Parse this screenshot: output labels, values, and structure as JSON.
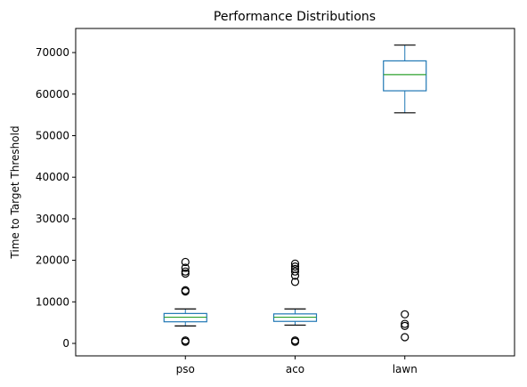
{
  "chart_data": {
    "type": "box",
    "title": "Performance Distributions",
    "xlabel": "",
    "ylabel": "Time to Target Threshold",
    "ylim": [
      -3000,
      75800
    ],
    "yticks": [
      0,
      10000,
      20000,
      30000,
      40000,
      50000,
      60000,
      70000
    ],
    "grid": false,
    "categories": [
      "pso",
      "aco",
      "lawn"
    ],
    "boxes": [
      {
        "category": "pso",
        "whisker_low": 4200,
        "q1": 5200,
        "median": 6300,
        "q3": 7200,
        "whisker_high": 8300,
        "outliers": [
          400,
          700,
          12500,
          12800,
          16800,
          17300,
          18200,
          19600
        ]
      },
      {
        "category": "aco",
        "whisker_low": 4400,
        "q1": 5300,
        "median": 6300,
        "q3": 7100,
        "whisker_high": 8300,
        "outliers": [
          400,
          700,
          14800,
          16300,
          17300,
          17900,
          18500,
          19200
        ]
      },
      {
        "category": "lawn",
        "whisker_low": 55500,
        "q1": 60800,
        "median": 64700,
        "q3": 68000,
        "whisker_high": 71800,
        "outliers": [
          1500,
          4200,
          4700,
          7000
        ]
      }
    ],
    "colors": {
      "box": "#1f77b4",
      "median": "#2ca02c",
      "whisker": "#000000",
      "outlier": "#000000"
    }
  }
}
